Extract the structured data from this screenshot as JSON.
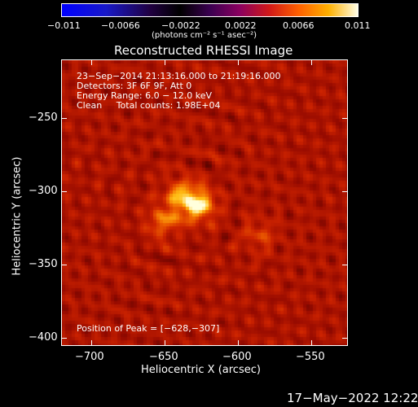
{
  "colorbar": {
    "tick_labels": [
      "−0.011",
      "−0.0066",
      "−0.0022",
      "0.0022",
      "0.0066",
      "0.011"
    ],
    "units_label": "(photons cm⁻² s⁻¹ asec⁻²)"
  },
  "chart_data": {
    "type": "heatmap",
    "title": "Reconstructed RHESSI Image",
    "xlabel": "Heliocentric X (arcsec)",
    "ylabel": "Heliocentric Y (arcsec)",
    "xlim": [
      -720,
      -525
    ],
    "ylim": [
      -402,
      -207
    ],
    "x_ticks": [
      "−700",
      "−650",
      "−600",
      "−550"
    ],
    "y_ticks": [
      "−250",
      "−300",
      "−350",
      "−400"
    ],
    "annotations": [
      "23−Sep−2014 21:13:16.000 to 21:19:16.000",
      "Detectors: 3F 6F 9F, Att 0",
      "Energy Range: 6.0 − 12.0 keV",
      "Clean     Total counts: 1.98E+04"
    ],
    "peak_label": "Position of Peak = [−628,−307]",
    "peak": [
      -628,
      -307
    ],
    "sources": [
      {
        "x": -628,
        "y": -305,
        "amp": 1.0
      },
      {
        "x": -640,
        "y": -298,
        "amp": 0.6
      },
      {
        "x": -651,
        "y": -316,
        "amp": 0.55
      },
      {
        "x": -586,
        "y": -326,
        "amp": 0.3
      }
    ]
  },
  "footer": {
    "timestamp": "17−May−2022 12:22"
  }
}
